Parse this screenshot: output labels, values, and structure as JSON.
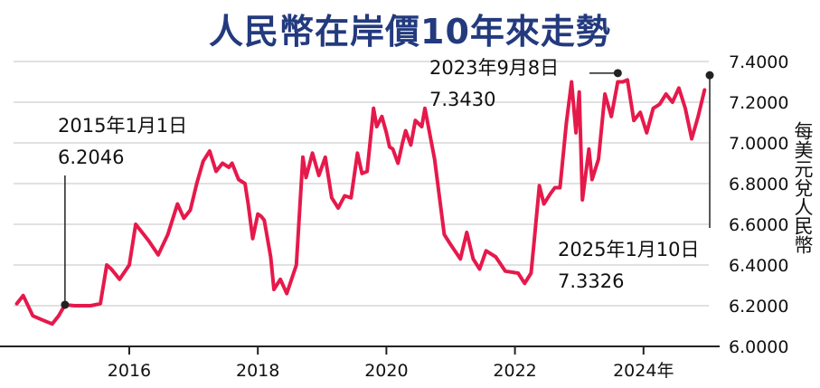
{
  "chart_data": {
    "type": "line",
    "title": "人民幣在岸價10年來走勢",
    "ylabel": "每美元兌人民幣",
    "ylim": [
      6.0,
      7.4
    ],
    "yticks": [
      "7.4000",
      "7.2000",
      "7.0000",
      "6.8000",
      "6.6000",
      "6.4000",
      "6.2000",
      "6.0000"
    ],
    "ytick_values": [
      7.4,
      7.2,
      7.0,
      6.8,
      6.6,
      6.4,
      6.2,
      6.0
    ],
    "xlim": [
      2014.2,
      2025.1
    ],
    "xticks": [
      "2016",
      "2018",
      "2020",
      "2022",
      "2024年"
    ],
    "xtick_values": [
      2016,
      2018,
      2020,
      2022,
      2024
    ],
    "grid": true,
    "color": "#e6194b",
    "series": [
      {
        "x": [
          2014.25,
          2014.35,
          2014.5,
          2014.65,
          2014.8,
          2014.9,
          2015.0,
          2015.15,
          2015.25,
          2015.4,
          2015.55,
          2015.65,
          2015.72,
          2015.85,
          2016.0,
          2016.1,
          2016.3,
          2016.45,
          2016.6,
          2016.75,
          2016.85,
          2016.95,
          2017.05,
          2017.15,
          2017.25,
          2017.35,
          2017.45,
          2017.55,
          2017.6,
          2017.7,
          2017.8,
          2017.85,
          2017.92,
          2018.0,
          2018.05,
          2018.1,
          2018.2,
          2018.25,
          2018.35,
          2018.45,
          2018.6,
          2018.7,
          2018.75,
          2018.85,
          2018.95,
          2019.05,
          2019.15,
          2019.25,
          2019.35,
          2019.45,
          2019.55,
          2019.62,
          2019.7,
          2019.8,
          2019.85,
          2019.93,
          2020.0,
          2020.05,
          2020.1,
          2020.18,
          2020.25,
          2020.3,
          2020.38,
          2020.45,
          2020.55,
          2020.6,
          2020.75,
          2020.9,
          2021.0,
          2021.15,
          2021.25,
          2021.35,
          2021.45,
          2021.55,
          2021.7,
          2021.85,
          2022.05,
          2022.15,
          2022.25,
          2022.3,
          2022.38,
          2022.45,
          2022.55,
          2022.62,
          2022.7,
          2022.8,
          2022.88,
          2022.95,
          2023.0,
          2023.05,
          2023.15,
          2023.2,
          2023.3,
          2023.4,
          2023.5,
          2023.6,
          2023.68,
          2023.75,
          2023.85,
          2023.95,
          2024.05,
          2024.15,
          2024.25,
          2024.35,
          2024.45,
          2024.55,
          2024.65,
          2024.75,
          2024.85,
          2024.95
        ],
        "y": [
          6.21,
          6.25,
          6.15,
          6.13,
          6.11,
          6.15,
          6.2046,
          6.2,
          6.2,
          6.2,
          6.21,
          6.4,
          6.38,
          6.33,
          6.4,
          6.6,
          6.52,
          6.45,
          6.55,
          6.7,
          6.63,
          6.67,
          6.8,
          6.91,
          6.96,
          6.86,
          6.9,
          6.88,
          6.9,
          6.82,
          6.8,
          6.7,
          6.53,
          6.65,
          6.64,
          6.62,
          6.44,
          6.28,
          6.33,
          6.26,
          6.4,
          6.93,
          6.83,
          6.95,
          6.84,
          6.93,
          6.73,
          6.68,
          6.74,
          6.73,
          6.95,
          6.85,
          6.86,
          7.17,
          7.08,
          7.13,
          7.05,
          6.98,
          6.97,
          6.9,
          7.0,
          7.06,
          6.99,
          7.11,
          7.08,
          7.17,
          6.92,
          6.55,
          6.5,
          6.43,
          6.56,
          6.43,
          6.38,
          6.47,
          6.44,
          6.37,
          6.36,
          6.31,
          6.36,
          6.52,
          6.79,
          6.7,
          6.75,
          6.78,
          6.78,
          7.1,
          7.3,
          7.05,
          7.25,
          6.72,
          6.97,
          6.82,
          6.92,
          7.24,
          7.13,
          7.3,
          7.3,
          7.31,
          7.11,
          7.15,
          7.05,
          7.17,
          7.19,
          7.24,
          7.2,
          7.27,
          7.17,
          7.02,
          7.13,
          7.26
        ]
      }
    ],
    "annotations": [
      {
        "date": "2015年1月1日",
        "value": "6.2046",
        "x": 2015.0,
        "y": 6.2046
      },
      {
        "date": "2023年9月8日",
        "value": "7.3430",
        "x": 2023.6,
        "y": 7.343
      },
      {
        "date": "2025年1月10日",
        "value": "7.3326",
        "x": 2025.03,
        "y": 7.3326
      }
    ]
  }
}
